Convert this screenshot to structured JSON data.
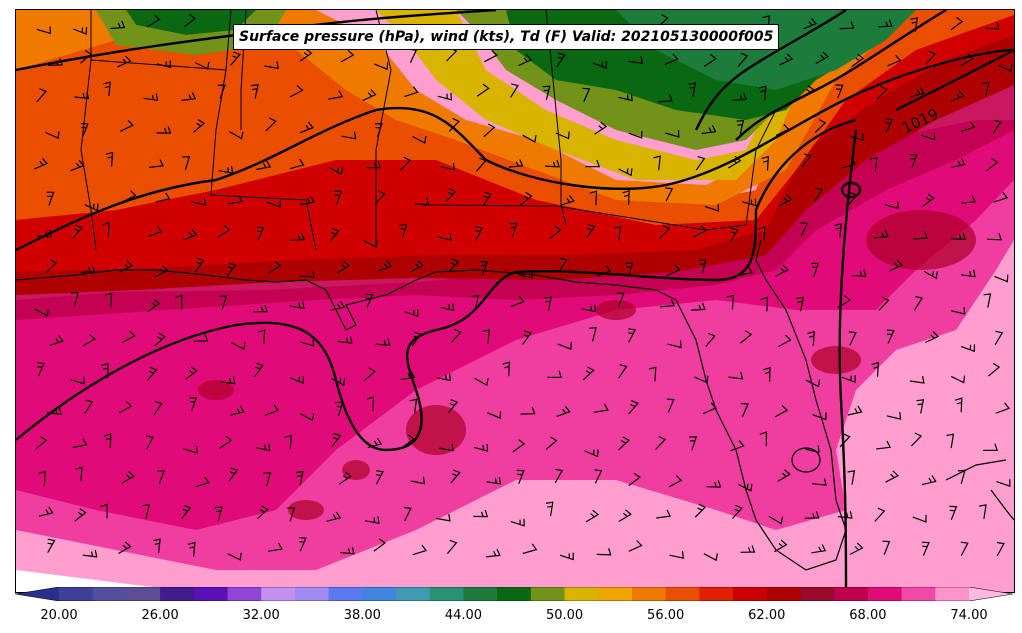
{
  "title": "Surface pressure (hPa), wind (kts), Td (F) Valid: 202105130000f005",
  "isobar_label": "1019",
  "colorbar": {
    "tick_labels": [
      "20.00",
      "26.00",
      "32.00",
      "38.00",
      "44.00",
      "50.00",
      "56.00",
      "62.00",
      "68.00",
      "74.00"
    ],
    "min": 18,
    "max": 76,
    "step": 2,
    "colors": [
      "#2b2f8c",
      "#3d3f99",
      "#524f9f",
      "#5e4c96",
      "#3f1d8a",
      "#5a10b4",
      "#8f45d6",
      "#c490f0",
      "#a08cf0",
      "#5a78f0",
      "#3f86de",
      "#3f9ab4",
      "#289172",
      "#1c7c3c",
      "#0a6812",
      "#72921a",
      "#d8b400",
      "#f0a400",
      "#f07a00",
      "#ea4e00",
      "#e02000",
      "#ca0000",
      "#ae0000",
      "#9a0a2a",
      "#c0004c",
      "#e00a78",
      "#f04aa4",
      "#ff92ca",
      "#ffb8e0"
    ]
  }
}
